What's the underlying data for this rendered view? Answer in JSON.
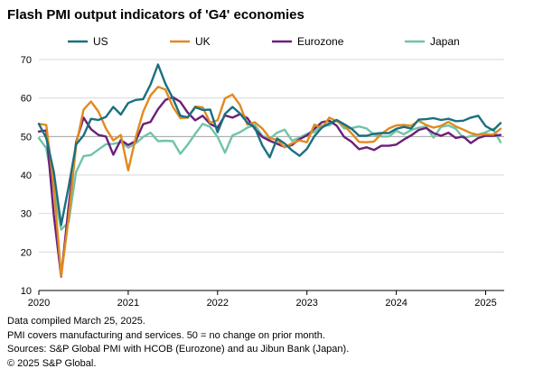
{
  "title": "Flash PMI output indicators of 'G4' economies",
  "notes": [
    "Data compiled March 25, 2025.",
    "PMI covers manufacturing and services. 50 = no change on prior month.",
    "Sources: S&P Global PMI with HCOB (Eurozone) and au Jibun Bank (Japan).",
    "© 2025 S&P Global."
  ],
  "colors": {
    "US": "#1b6f7f",
    "UK": "#e08a1e",
    "Eurozone": "#6b1f7a",
    "Japan": "#6fc4a8",
    "grid": "#d9d9d9",
    "reference": "#a6a6a6"
  },
  "chart_data": {
    "type": "line",
    "xlabel": "",
    "ylabel": "",
    "ylim": [
      10,
      70
    ],
    "yticks": [
      10,
      20,
      30,
      40,
      50,
      60,
      70
    ],
    "xticks": [
      "2020",
      "2021",
      "2022",
      "2023",
      "2024",
      "2025"
    ],
    "x_range": [
      "2020-01",
      "2025-03"
    ],
    "reference_line": 50,
    "grid": "horizontal",
    "legend_position": "top",
    "x": [
      "2020-01",
      "2020-02",
      "2020-03",
      "2020-04",
      "2020-05",
      "2020-06",
      "2020-07",
      "2020-08",
      "2020-09",
      "2020-10",
      "2020-11",
      "2020-12",
      "2021-01",
      "2021-02",
      "2021-03",
      "2021-04",
      "2021-05",
      "2021-06",
      "2021-07",
      "2021-08",
      "2021-09",
      "2021-10",
      "2021-11",
      "2021-12",
      "2022-01",
      "2022-02",
      "2022-03",
      "2022-04",
      "2022-05",
      "2022-06",
      "2022-07",
      "2022-08",
      "2022-09",
      "2022-10",
      "2022-11",
      "2022-12",
      "2023-01",
      "2023-02",
      "2023-03",
      "2023-04",
      "2023-05",
      "2023-06",
      "2023-07",
      "2023-08",
      "2023-09",
      "2023-10",
      "2023-11",
      "2023-12",
      "2024-01",
      "2024-02",
      "2024-03",
      "2024-04",
      "2024-05",
      "2024-06",
      "2024-07",
      "2024-08",
      "2024-09",
      "2024-10",
      "2024-11",
      "2024-12",
      "2025-01",
      "2025-02",
      "2025-03"
    ],
    "series": [
      {
        "name": "US",
        "color": "#1b6f7f",
        "values": [
          53.3,
          49.6,
          40.9,
          27.0,
          37.0,
          47.9,
          50.3,
          54.6,
          54.3,
          55.1,
          57.7,
          55.7,
          58.7,
          59.5,
          59.7,
          63.5,
          68.7,
          63.7,
          59.9,
          55.4,
          55.0,
          57.6,
          56.9,
          57.0,
          51.1,
          55.9,
          57.7,
          56.0,
          53.6,
          52.3,
          47.7,
          44.6,
          49.5,
          48.2,
          46.4,
          45.0,
          46.8,
          50.1,
          52.3,
          53.4,
          54.3,
          53.2,
          52.0,
          50.2,
          50.2,
          50.7,
          50.9,
          50.9,
          52.0,
          52.5,
          52.1,
          54.4,
          54.5,
          54.8,
          54.3,
          54.6,
          54.0,
          54.1,
          54.9,
          55.4,
          52.7,
          51.6,
          53.5
        ]
      },
      {
        "name": "UK",
        "color": "#e08a1e",
        "values": [
          53.3,
          53.0,
          37.1,
          13.8,
          28.9,
          47.7,
          57.0,
          59.1,
          56.5,
          52.1,
          49.0,
          50.4,
          41.2,
          49.6,
          56.4,
          60.7,
          62.9,
          62.2,
          57.7,
          54.8,
          54.9,
          57.8,
          57.6,
          53.6,
          54.2,
          59.9,
          60.9,
          58.2,
          53.1,
          53.7,
          52.1,
          49.6,
          49.1,
          47.2,
          48.2,
          49.0,
          48.5,
          53.1,
          52.2,
          54.9,
          54.0,
          52.8,
          50.8,
          48.6,
          48.5,
          48.7,
          50.7,
          52.1,
          52.9,
          53.0,
          52.8,
          54.1,
          53.0,
          52.3,
          52.8,
          53.8,
          52.6,
          51.8,
          50.9,
          50.4,
          50.6,
          50.5,
          52.0
        ]
      },
      {
        "name": "Eurozone",
        "color": "#6b1f7a",
        "values": [
          51.3,
          51.6,
          29.7,
          13.6,
          31.9,
          48.5,
          54.9,
          51.9,
          50.4,
          50.0,
          45.3,
          49.1,
          47.8,
          48.8,
          53.2,
          53.8,
          57.1,
          59.5,
          60.2,
          59.0,
          56.2,
          54.2,
          55.4,
          53.3,
          52.3,
          55.5,
          54.9,
          55.8,
          54.8,
          52.0,
          49.9,
          48.9,
          48.1,
          47.3,
          47.8,
          49.3,
          50.3,
          52.0,
          53.7,
          54.1,
          52.8,
          49.9,
          48.6,
          46.7,
          47.2,
          46.5,
          47.6,
          47.6,
          47.9,
          49.2,
          50.3,
          51.7,
          52.2,
          50.9,
          50.2,
          51.0,
          49.6,
          50.0,
          48.3,
          49.6,
          50.2,
          50.2,
          50.4
        ]
      },
      {
        "name": "Japan",
        "color": "#6fc4a8",
        "values": [
          49.6,
          47.0,
          36.2,
          25.8,
          27.8,
          40.8,
          44.9,
          45.2,
          46.6,
          48.0,
          48.1,
          48.5,
          47.1,
          48.2,
          49.9,
          51.0,
          48.8,
          48.9,
          48.8,
          45.5,
          47.9,
          50.7,
          53.3,
          52.5,
          49.9,
          45.8,
          50.3,
          51.1,
          52.3,
          53.0,
          50.2,
          49.4,
          51.0,
          51.8,
          48.9,
          49.7,
          50.7,
          51.1,
          52.9,
          52.9,
          54.3,
          52.1,
          52.2,
          52.6,
          52.1,
          50.5,
          50.0,
          50.0,
          51.5,
          50.6,
          51.7,
          52.3,
          52.6,
          49.7,
          52.5,
          52.9,
          52.0,
          49.6,
          50.1,
          50.5,
          51.1,
          52.0,
          48.5
        ]
      }
    ]
  }
}
